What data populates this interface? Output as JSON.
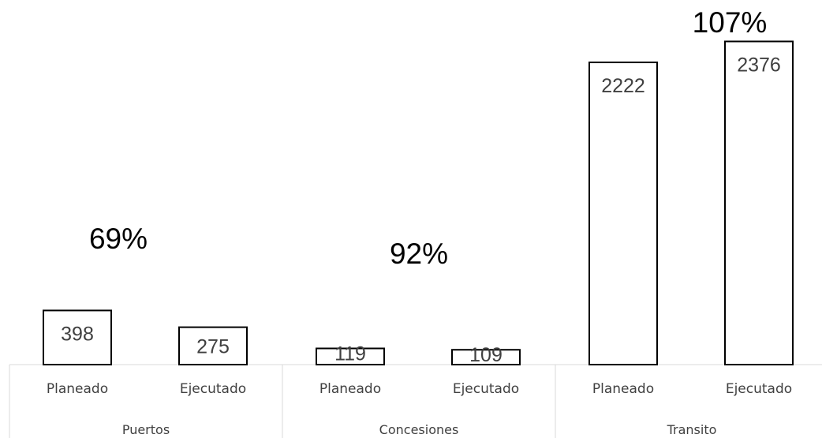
{
  "chart_data": {
    "type": "bar",
    "groups": [
      {
        "name": "Puertos",
        "pct_label": "69%",
        "bars": [
          {
            "label": "Planeado",
            "value": 398
          },
          {
            "label": "Ejecutado",
            "value": 275
          }
        ]
      },
      {
        "name": "Concesiones",
        "pct_label": "92%",
        "bars": [
          {
            "label": "Planeado",
            "value": 119
          },
          {
            "label": "Ejecutado",
            "value": 109
          }
        ]
      },
      {
        "name": "Transito",
        "pct_label": "107%",
        "bars": [
          {
            "label": "Planeado",
            "value": 2222
          },
          {
            "label": "Ejecutado",
            "value": 2376
          }
        ]
      }
    ],
    "ylim": [
      0,
      2600
    ],
    "grid": false,
    "legend": "none",
    "colors": {
      "bar_fill": "#ffffff",
      "bar_stroke": "#000000",
      "axis": "#d9d9d9",
      "text": "#404040"
    }
  }
}
